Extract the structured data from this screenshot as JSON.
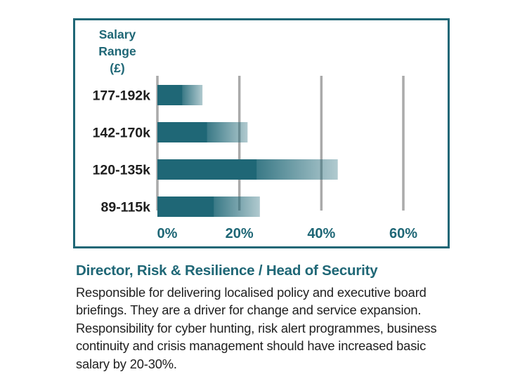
{
  "chart_data": {
    "type": "bar",
    "orientation": "horizontal",
    "ylabel": "Salary Range (£)",
    "ylabel_lines": [
      "Salary",
      "Range",
      "(£)"
    ],
    "categories": [
      "177-192k",
      "142-170k",
      "120-135k",
      "89-115k"
    ],
    "values": [
      11,
      22,
      44,
      25
    ],
    "xlim": [
      0,
      60
    ],
    "xticks": [
      0,
      20,
      40,
      60
    ],
    "xtick_labels": [
      "0%",
      "20%",
      "40%",
      "60%"
    ],
    "grid": "vertical",
    "bar_color": "#1f6776",
    "grid_color": "#aaaaaa",
    "frame_color": "#1f6776"
  },
  "role": {
    "title": "Director, Risk & Resilience / Head of Security",
    "description": "Responsible for delivering localised policy and executive board briefings. They are a driver for change and service expansion. Responsibility for cyber hunting, risk alert programmes, business continuity and crisis management should have increased basic salary by 20-30%."
  }
}
